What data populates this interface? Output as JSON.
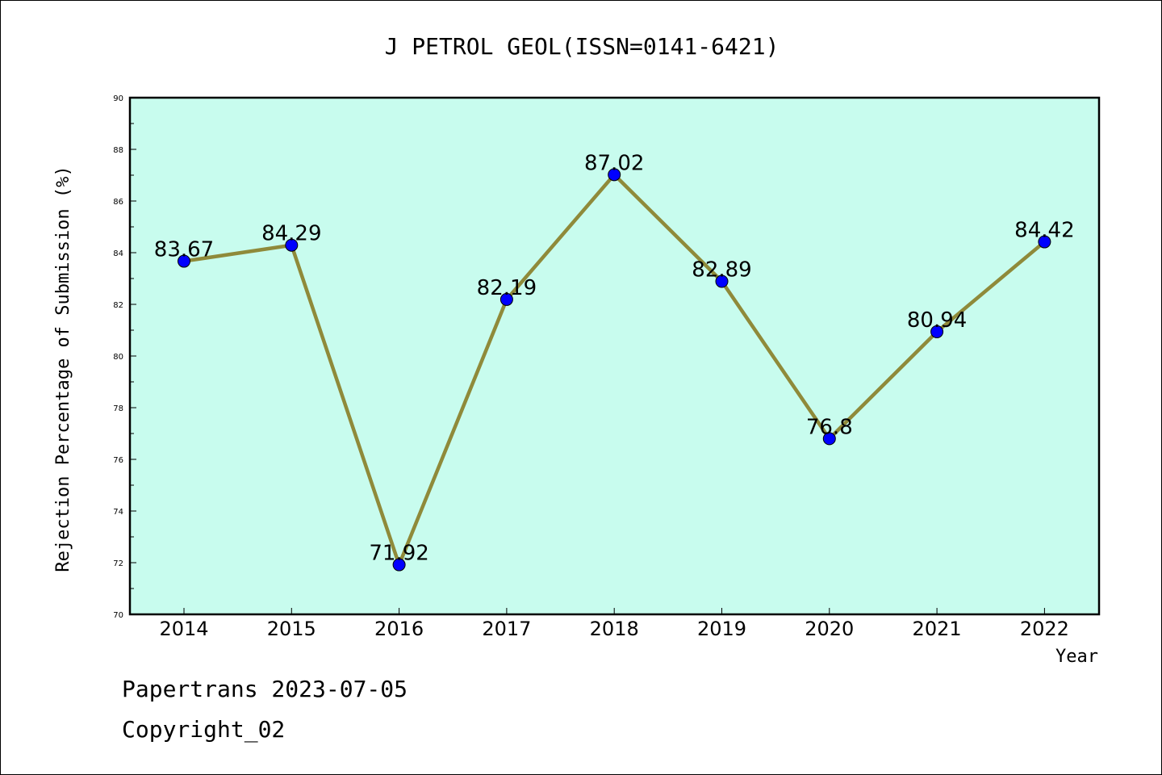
{
  "chart_data": {
    "type": "line",
    "title": "J PETROL GEOL(ISSN=0141-6421)",
    "xlabel": "Year",
    "ylabel": "Rejection Percentage of Submission (%)",
    "categories": [
      "2014",
      "2015",
      "2016",
      "2017",
      "2018",
      "2019",
      "2020",
      "2021",
      "2022"
    ],
    "series": [
      {
        "values": [
          83.67,
          84.29,
          71.92,
          82.19,
          87.02,
          82.89,
          76.8,
          80.94,
          84.42
        ],
        "labels": [
          "83.67",
          "84.29",
          "71.92",
          "82.19",
          "87.02",
          "82.89",
          "76.8",
          "80.94",
          "84.42"
        ]
      }
    ],
    "ylim": [
      70,
      90
    ],
    "yticks": [
      "70",
      "72",
      "74",
      "76",
      "78",
      "80",
      "82",
      "84",
      "86",
      "88",
      "90"
    ],
    "grid": false,
    "colors": {
      "plot_background": "#c8fcee",
      "line": "#8f8a3a",
      "marker": "#0000ff"
    }
  },
  "footer": {
    "line1": "Papertrans 2023-07-05",
    "line2": "Copyright_02"
  }
}
